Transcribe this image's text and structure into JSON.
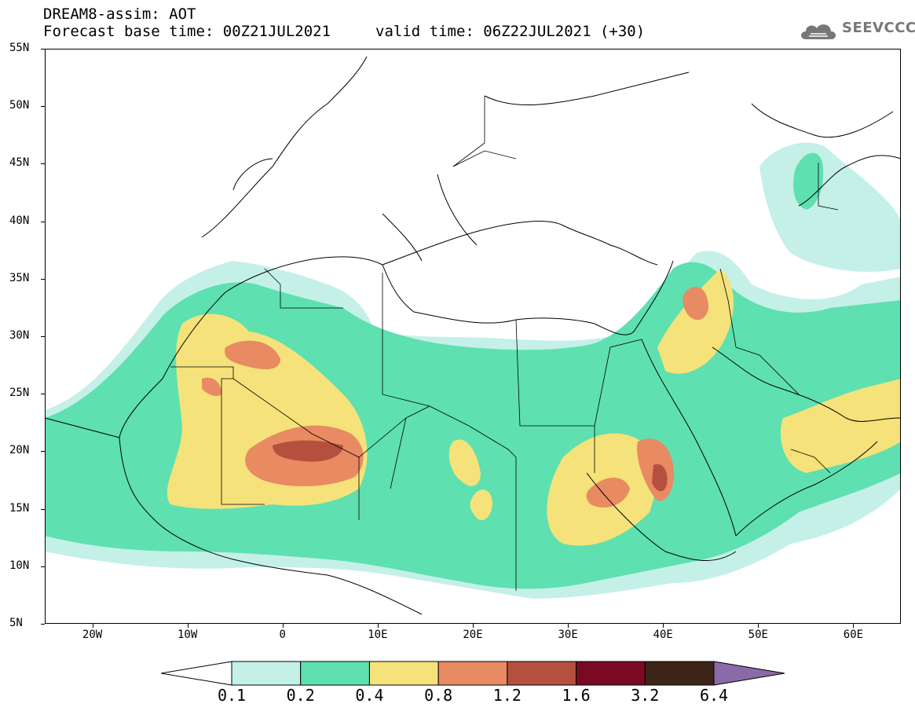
{
  "header": {
    "title": "DREAM8-assim: AOT",
    "base_time": "Forecast base time: 00Z21JUL2021",
    "valid_time": "valid time: 06Z22JUL2021 (+30)"
  },
  "logo": {
    "text": "SEEVCCC",
    "icon": "cloud-logo-icon"
  },
  "map": {
    "lat_labels": [
      "55N",
      "50N",
      "45N",
      "40N",
      "35N",
      "30N",
      "25N",
      "20N",
      "15N",
      "10N",
      "5N"
    ],
    "lon_labels": [
      "20W",
      "10W",
      "0",
      "10E",
      "20E",
      "30E",
      "40E",
      "50E",
      "60E"
    ],
    "lat_range": [
      5,
      55
    ],
    "lon_range": [
      -25,
      65
    ]
  },
  "colorbar": {
    "labels": [
      "0.1",
      "0.2",
      "0.4",
      "0.8",
      "1.2",
      "1.6",
      "3.2",
      "6.4"
    ],
    "colors": [
      "#ffffff",
      "#c4f0e8",
      "#5ee0b0",
      "#f5e27a",
      "#e88a62",
      "#b5503e",
      "#7a0a24",
      "#3d2418",
      "#8b6aa8"
    ]
  }
}
